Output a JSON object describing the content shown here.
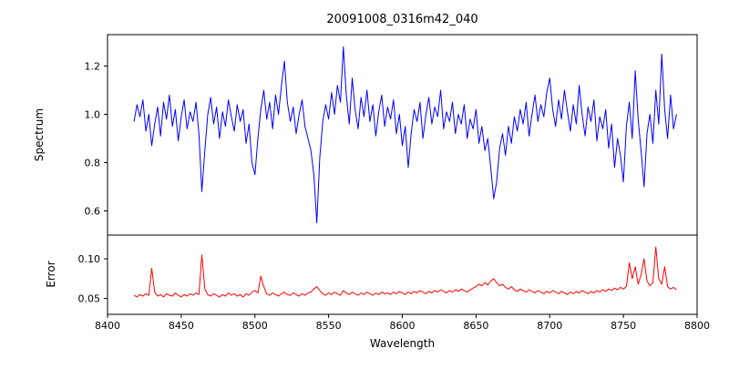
{
  "chart_data": {
    "type": "line",
    "title": "20091008_0316m42_040",
    "xlabel": "Wavelength",
    "xlim": [
      8400,
      8800
    ],
    "x_ticks": [
      8400,
      8450,
      8500,
      8550,
      8600,
      8650,
      8700,
      8750,
      8800
    ],
    "grid": false,
    "legend": "none",
    "panels": [
      {
        "name": "spectrum",
        "ylabel": "Spectrum",
        "ylim": [
          0.5,
          1.33
        ],
        "y_ticks": [
          0.6,
          0.8,
          1.0,
          1.2
        ],
        "color": "#0000ff"
      },
      {
        "name": "error",
        "ylabel": "Error",
        "ylim": [
          0.03,
          0.13
        ],
        "y_ticks": [
          0.05,
          0.1
        ],
        "color": "#ff0000"
      }
    ],
    "x": [
      8418,
      8420,
      8422,
      8424,
      8426,
      8428,
      8430,
      8432,
      8434,
      8436,
      8438,
      8440,
      8442,
      8444,
      8446,
      8448,
      8450,
      8452,
      8454,
      8456,
      8458,
      8460,
      8462,
      8464,
      8466,
      8468,
      8470,
      8472,
      8474,
      8476,
      8478,
      8480,
      8482,
      8484,
      8486,
      8488,
      8490,
      8492,
      8494,
      8496,
      8498,
      8500,
      8502,
      8504,
      8506,
      8508,
      8510,
      8512,
      8514,
      8516,
      8518,
      8520,
      8522,
      8524,
      8526,
      8528,
      8530,
      8532,
      8534,
      8536,
      8538,
      8540,
      8542,
      8544,
      8546,
      8548,
      8550,
      8552,
      8554,
      8556,
      8558,
      8560,
      8562,
      8564,
      8566,
      8568,
      8570,
      8572,
      8574,
      8576,
      8578,
      8580,
      8582,
      8584,
      8586,
      8588,
      8590,
      8592,
      8594,
      8596,
      8598,
      8600,
      8602,
      8604,
      8606,
      8608,
      8610,
      8612,
      8614,
      8616,
      8618,
      8620,
      8622,
      8624,
      8626,
      8628,
      8630,
      8632,
      8634,
      8636,
      8638,
      8640,
      8642,
      8644,
      8646,
      8648,
      8650,
      8652,
      8654,
      8656,
      8658,
      8660,
      8662,
      8664,
      8666,
      8668,
      8670,
      8672,
      8674,
      8676,
      8678,
      8680,
      8682,
      8684,
      8686,
      8688,
      8690,
      8692,
      8694,
      8696,
      8698,
      8700,
      8702,
      8704,
      8706,
      8708,
      8710,
      8712,
      8714,
      8716,
      8718,
      8720,
      8722,
      8724,
      8726,
      8728,
      8730,
      8732,
      8734,
      8736,
      8738,
      8740,
      8742,
      8744,
      8746,
      8748,
      8750,
      8752,
      8754,
      8756,
      8758,
      8760,
      8762,
      8764,
      8766,
      8768,
      8770,
      8772,
      8774,
      8776,
      8778,
      8780,
      8782,
      8784,
      8786
    ],
    "series": [
      {
        "name": "Spectrum",
        "values": [
          0.97,
          1.04,
          0.99,
          1.06,
          0.93,
          1.0,
          0.87,
          0.96,
          1.03,
          0.91,
          1.05,
          0.98,
          1.08,
          0.95,
          1.02,
          0.89,
          0.99,
          1.06,
          0.94,
          1.01,
          0.97,
          1.05,
          0.92,
          0.68,
          0.85,
          1.0,
          1.07,
          0.96,
          1.03,
          0.9,
          1.01,
          0.95,
          1.06,
          0.99,
          0.93,
          1.04,
          0.97,
          1.02,
          0.88,
          0.96,
          0.8,
          0.75,
          0.9,
          1.02,
          1.1,
          0.98,
          1.05,
          0.94,
          1.08,
          1.0,
          1.12,
          1.22,
          1.05,
          0.97,
          1.03,
          0.92,
          1.0,
          1.06,
          0.95,
          0.9,
          0.85,
          0.75,
          0.55,
          0.82,
          0.97,
          1.04,
          0.98,
          1.09,
          1.0,
          1.12,
          1.05,
          1.28,
          1.08,
          0.96,
          1.15,
          1.02,
          0.94,
          1.07,
          0.99,
          1.1,
          0.97,
          1.04,
          0.91,
          1.01,
          1.08,
          0.95,
          1.03,
          0.98,
          1.06,
          0.92,
          1.0,
          0.87,
          0.95,
          0.78,
          0.92,
          1.02,
          0.97,
          1.05,
          0.9,
          1.0,
          1.07,
          0.96,
          1.03,
          0.99,
          1.1,
          0.94,
          1.01,
          0.97,
          1.05,
          0.92,
          1.0,
          0.96,
          1.04,
          0.9,
          0.98,
          0.94,
          1.02,
          0.88,
          0.95,
          0.85,
          0.9,
          0.78,
          0.65,
          0.72,
          0.86,
          0.92,
          0.83,
          0.95,
          0.88,
          0.99,
          0.93,
          1.02,
          0.96,
          1.05,
          0.91,
          1.0,
          1.08,
          0.97,
          1.04,
          0.99,
          1.09,
          1.15,
          1.02,
          0.95,
          1.06,
          0.98,
          1.1,
          1.01,
          0.93,
          1.04,
          0.96,
          1.12,
          1.0,
          0.91,
          1.03,
          0.97,
          1.06,
          0.89,
          0.99,
          0.94,
          1.02,
          0.86,
          0.96,
          0.78,
          0.9,
          0.83,
          0.72,
          0.95,
          1.05,
          0.9,
          1.18,
          0.98,
          0.85,
          0.7,
          0.92,
          1.0,
          0.88,
          1.1,
          0.96,
          1.25,
          1.02,
          0.9,
          1.08,
          0.94,
          1.0
        ]
      },
      {
        "name": "Error",
        "values": [
          0.054,
          0.052,
          0.055,
          0.053,
          0.056,
          0.054,
          0.088,
          0.058,
          0.053,
          0.055,
          0.052,
          0.056,
          0.054,
          0.053,
          0.057,
          0.054,
          0.052,
          0.055,
          0.053,
          0.056,
          0.054,
          0.057,
          0.055,
          0.105,
          0.062,
          0.055,
          0.053,
          0.056,
          0.054,
          0.052,
          0.055,
          0.053,
          0.057,
          0.054,
          0.056,
          0.053,
          0.055,
          0.052,
          0.056,
          0.054,
          0.058,
          0.06,
          0.057,
          0.078,
          0.065,
          0.056,
          0.054,
          0.057,
          0.055,
          0.053,
          0.056,
          0.058,
          0.055,
          0.054,
          0.057,
          0.055,
          0.053,
          0.056,
          0.054,
          0.057,
          0.058,
          0.062,
          0.065,
          0.06,
          0.056,
          0.054,
          0.057,
          0.055,
          0.058,
          0.056,
          0.054,
          0.06,
          0.057,
          0.055,
          0.058,
          0.056,
          0.054,
          0.057,
          0.055,
          0.058,
          0.056,
          0.054,
          0.057,
          0.055,
          0.058,
          0.056,
          0.057,
          0.055,
          0.058,
          0.056,
          0.059,
          0.057,
          0.055,
          0.058,
          0.056,
          0.059,
          0.057,
          0.06,
          0.058,
          0.056,
          0.059,
          0.057,
          0.06,
          0.058,
          0.061,
          0.059,
          0.057,
          0.06,
          0.058,
          0.061,
          0.059,
          0.062,
          0.06,
          0.058,
          0.061,
          0.063,
          0.065,
          0.068,
          0.066,
          0.07,
          0.067,
          0.072,
          0.075,
          0.07,
          0.066,
          0.068,
          0.064,
          0.062,
          0.065,
          0.061,
          0.059,
          0.062,
          0.06,
          0.058,
          0.061,
          0.059,
          0.057,
          0.06,
          0.058,
          0.056,
          0.059,
          0.057,
          0.06,
          0.058,
          0.056,
          0.059,
          0.057,
          0.055,
          0.058,
          0.056,
          0.059,
          0.057,
          0.06,
          0.058,
          0.056,
          0.059,
          0.057,
          0.06,
          0.058,
          0.061,
          0.059,
          0.062,
          0.06,
          0.063,
          0.061,
          0.064,
          0.062,
          0.065,
          0.095,
          0.075,
          0.09,
          0.068,
          0.08,
          0.1,
          0.072,
          0.066,
          0.07,
          0.115,
          0.075,
          0.068,
          0.09,
          0.065,
          0.062,
          0.064,
          0.061
        ]
      }
    ]
  }
}
